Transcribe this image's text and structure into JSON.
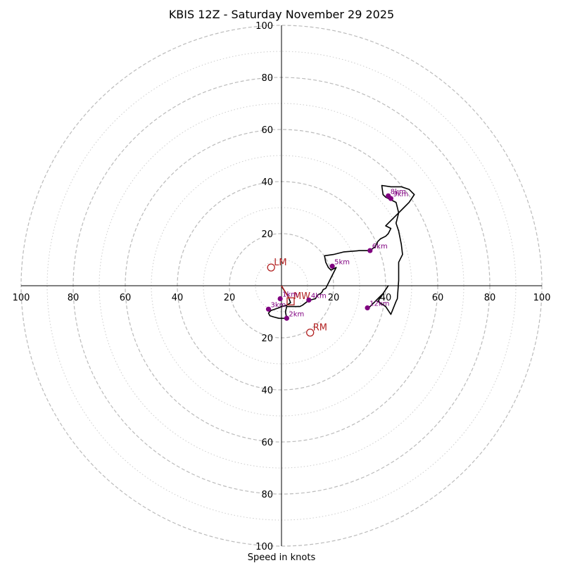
{
  "chart_data": {
    "type": "hodograph",
    "title": "KBIS 12Z - Saturday November 29 2025",
    "xlabel": "Speed in knots",
    "max_speed": 100,
    "rings_major": [
      20,
      40,
      60,
      80,
      100
    ],
    "rings_minor": [
      10,
      30,
      50,
      70,
      90
    ],
    "tick_values": [
      20,
      40,
      60,
      80,
      100
    ],
    "tick_labels": [
      "20",
      "40",
      "60",
      "80",
      "100"
    ],
    "colors": {
      "trace": "#000000",
      "height_marker": "#800080",
      "motion": "#b22222",
      "grid": "#bbbbbb"
    },
    "trace_uv": [
      [
        0,
        0
      ],
      [
        0.5,
        -1
      ],
      [
        1.5,
        -2.5
      ],
      [
        2.5,
        -4
      ],
      [
        3.5,
        -6.5
      ],
      [
        2,
        -7.5
      ],
      [
        0,
        -8
      ],
      [
        -1,
        -8.5
      ],
      [
        -2.5,
        -9
      ],
      [
        -4,
        -9.5
      ],
      [
        -5,
        -10.5
      ],
      [
        -4.5,
        -11.5
      ],
      [
        -3,
        -12
      ],
      [
        -1,
        -12.5
      ],
      [
        1,
        -12.5
      ],
      [
        2,
        -12.5
      ],
      [
        1.5,
        -10
      ],
      [
        2,
        -8
      ],
      [
        4,
        -8
      ],
      [
        7,
        -8
      ],
      [
        8,
        -7.5
      ],
      [
        10,
        -6
      ],
      [
        11,
        -5.5
      ],
      [
        13,
        -5
      ],
      [
        14,
        -3.5
      ],
      [
        15,
        -3
      ],
      [
        15.5,
        -2.5
      ],
      [
        16,
        -1.5
      ],
      [
        17,
        -1
      ],
      [
        18,
        1
      ],
      [
        19,
        3
      ],
      [
        20,
        5
      ],
      [
        21,
        7
      ],
      [
        19,
        6
      ],
      [
        18,
        7
      ],
      [
        17,
        9
      ],
      [
        16.5,
        11.5
      ],
      [
        20,
        12
      ],
      [
        24,
        13
      ],
      [
        30,
        13.5
      ],
      [
        34,
        13.5
      ],
      [
        36,
        15
      ],
      [
        37,
        17
      ],
      [
        38,
        18
      ],
      [
        40,
        19
      ],
      [
        41,
        20
      ],
      [
        42,
        22
      ],
      [
        40,
        23
      ],
      [
        41,
        24
      ],
      [
        43,
        26
      ],
      [
        45,
        28
      ],
      [
        47,
        30
      ],
      [
        49,
        32
      ],
      [
        51,
        35
      ],
      [
        49,
        37
      ],
      [
        46,
        38
      ],
      [
        44,
        38
      ],
      [
        42,
        38
      ],
      [
        38.5,
        38.5
      ],
      [
        39,
        35
      ],
      [
        40,
        34
      ],
      [
        42,
        33
      ],
      [
        44,
        32
      ],
      [
        45,
        28
      ],
      [
        44,
        24
      ],
      [
        45,
        21
      ],
      [
        46,
        16
      ],
      [
        46.5,
        12
      ],
      [
        45,
        9
      ],
      [
        45,
        2
      ],
      [
        44.5,
        -5
      ],
      [
        44,
        -6
      ],
      [
        42,
        -11
      ],
      [
        40,
        -8
      ],
      [
        37,
        -6
      ],
      [
        41,
        0
      ],
      [
        39,
        -3
      ],
      [
        37,
        -5
      ],
      [
        36,
        -6
      ],
      [
        33,
        -9
      ]
    ],
    "height_markers": [
      {
        "label": "1km",
        "u": -0.5,
        "v": -5
      },
      {
        "label": "2km",
        "u": 2,
        "v": -12.5
      },
      {
        "label": "3km",
        "u": -5,
        "v": -9
      },
      {
        "label": "4km",
        "u": 10.5,
        "v": -5.5
      },
      {
        "label": "5km",
        "u": 19.5,
        "v": 7.5
      },
      {
        "label": "6km",
        "u": 34,
        "v": 13.5
      },
      {
        "label": "8km",
        "u": 41,
        "v": 34.5
      },
      {
        "label": "9km",
        "u": 42,
        "v": 33.5
      },
      {
        "label": "12km",
        "u": 33,
        "v": -8.5
      }
    ],
    "storm_motion": [
      {
        "label": "LM",
        "u": -4,
        "v": 7,
        "shape": "circle"
      },
      {
        "label": "MW",
        "u": 3.5,
        "v": -6,
        "shape": "square"
      },
      {
        "label": "RM",
        "u": 11,
        "v": -18,
        "shape": "circle"
      }
    ],
    "mean_wind_vector": [
      3,
      -5
    ]
  }
}
